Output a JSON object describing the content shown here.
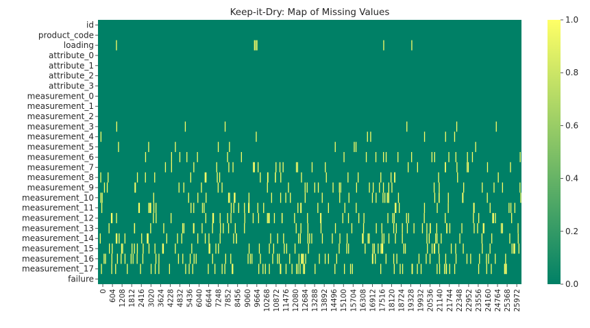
{
  "chart_data": {
    "type": "heatmap",
    "title": "Keep-it-Dry: Map of Missing Values",
    "rows": [
      "id",
      "product_code",
      "loading",
      "attribute_0",
      "attribute_1",
      "attribute_2",
      "attribute_3",
      "measurement_0",
      "measurement_1",
      "measurement_2",
      "measurement_3",
      "measurement_4",
      "measurement_5",
      "measurement_6",
      "measurement_7",
      "measurement_8",
      "measurement_9",
      "measurement_10",
      "measurement_11",
      "measurement_12",
      "measurement_13",
      "measurement_14",
      "measurement_15",
      "measurement_16",
      "measurement_17",
      "failure"
    ],
    "x_ticks": [
      "0",
      "604",
      "1208",
      "1812",
      "2416",
      "3020",
      "3624",
      "4228",
      "4832",
      "5436",
      "6040",
      "6644",
      "7248",
      "7852",
      "8456",
      "9060",
      "9664",
      "10268",
      "10872",
      "11476",
      "12080",
      "12684",
      "13288",
      "13892",
      "14496",
      "15100",
      "15704",
      "16308",
      "16912",
      "17516",
      "18120",
      "18724",
      "19328",
      "19932",
      "20536",
      "21140",
      "21744",
      "22348",
      "22952",
      "23556",
      "24160",
      "24764",
      "25368",
      "25972"
    ],
    "x_range": [
      0,
      26570
    ],
    "value_range": [
      0,
      1
    ],
    "colorbar_ticks": [
      "0.0",
      "0.2",
      "0.4",
      "0.6",
      "0.8",
      "1.0"
    ],
    "colormap": {
      "low": "#008066",
      "mid": "#80c066",
      "high": "#ffff66"
    },
    "missing_rate": {
      "id": 0,
      "product_code": 0,
      "loading": 0.01,
      "attribute_0": 0,
      "attribute_1": 0,
      "attribute_2": 0,
      "attribute_3": 0,
      "measurement_0": 0,
      "measurement_1": 0,
      "measurement_2": 0,
      "measurement_3": 0.014,
      "measurement_4": 0.02,
      "measurement_5": 0.025,
      "measurement_6": 0.03,
      "measurement_7": 0.035,
      "measurement_8": 0.04,
      "measurement_9": 0.045,
      "measurement_10": 0.05,
      "measurement_11": 0.055,
      "measurement_12": 0.06,
      "measurement_13": 0.065,
      "measurement_14": 0.07,
      "measurement_15": 0.075,
      "measurement_16": 0.08,
      "measurement_17": 0.085,
      "failure": 0
    },
    "missing_samples": {
      "loading": [
        1130,
        9790,
        9870,
        9950,
        17900,
        19660
      ],
      "measurement_3": [
        1150,
        5450,
        7950,
        19350,
        22480,
        24960
      ],
      "measurement_4": [
        160,
        9900,
        16880,
        17080,
        20460,
        21780,
        22350
      ],
      "measurement_5": [
        1260,
        3150,
        4830,
        7520,
        8220,
        14860,
        16050,
        16160,
        23670
      ]
    }
  }
}
